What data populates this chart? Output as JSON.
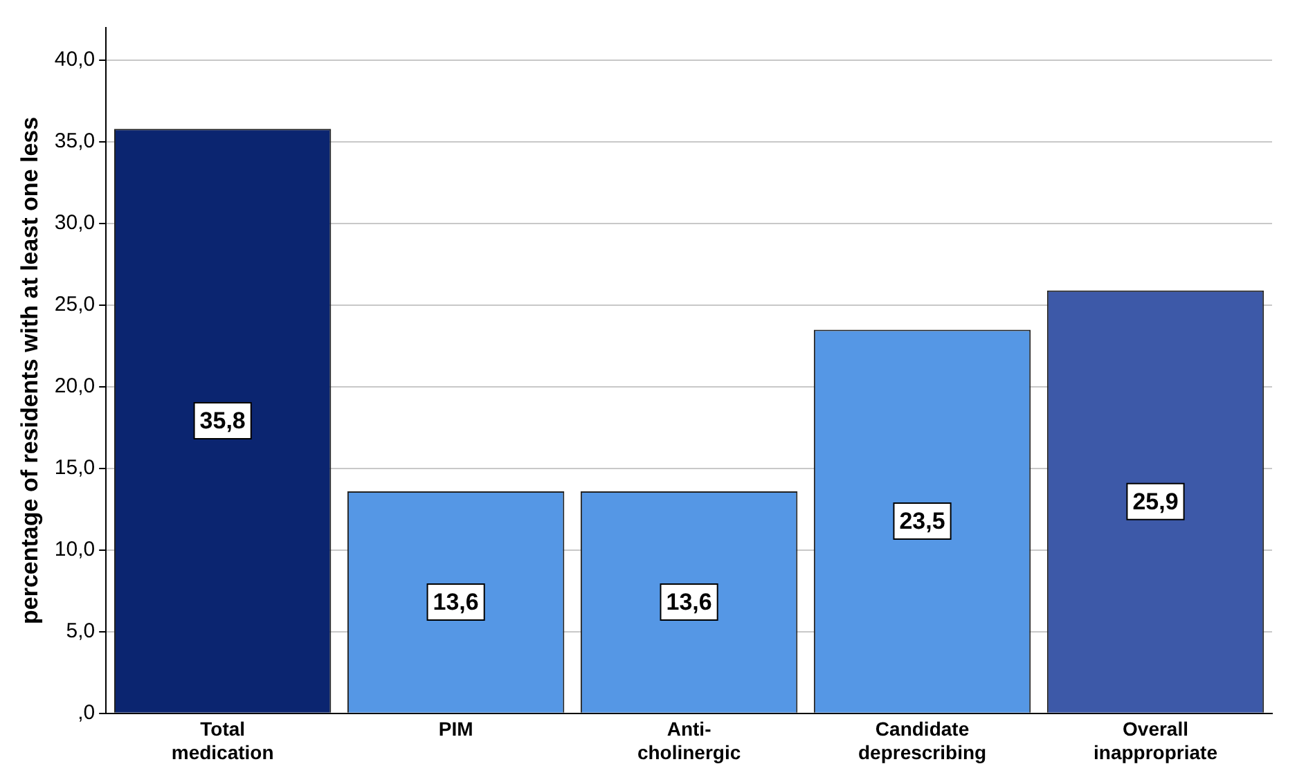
{
  "chart_data": {
    "type": "bar",
    "ylabel": "percentage of residents with at least one less",
    "categories": [
      "Total medication",
      "PIM",
      "Anti-cholinergic",
      "Candidate deprescribing",
      "Overall inappropriate"
    ],
    "values": [
      35.8,
      13.6,
      13.6,
      23.5,
      25.9
    ],
    "colors": [
      "#0b2570",
      "#5597e5",
      "#5597e5",
      "#5597e5",
      "#3d59a8"
    ],
    "value_labels": [
      "35,8",
      "13,6",
      "13,6",
      "23,5",
      "25,9"
    ],
    "ylim": [
      0,
      42
    ],
    "yticks": [
      {
        "value": 0,
        "label": ",0"
      },
      {
        "value": 5,
        "label": "5,0"
      },
      {
        "value": 10,
        "label": "10,0"
      },
      {
        "value": 15,
        "label": "15,0"
      },
      {
        "value": 20,
        "label": "20,0"
      },
      {
        "value": 25,
        "label": "25,0"
      },
      {
        "value": 30,
        "label": "30,0"
      },
      {
        "value": 35,
        "label": "35,0"
      },
      {
        "value": 40,
        "label": "40,0"
      }
    ],
    "grid": "y"
  }
}
